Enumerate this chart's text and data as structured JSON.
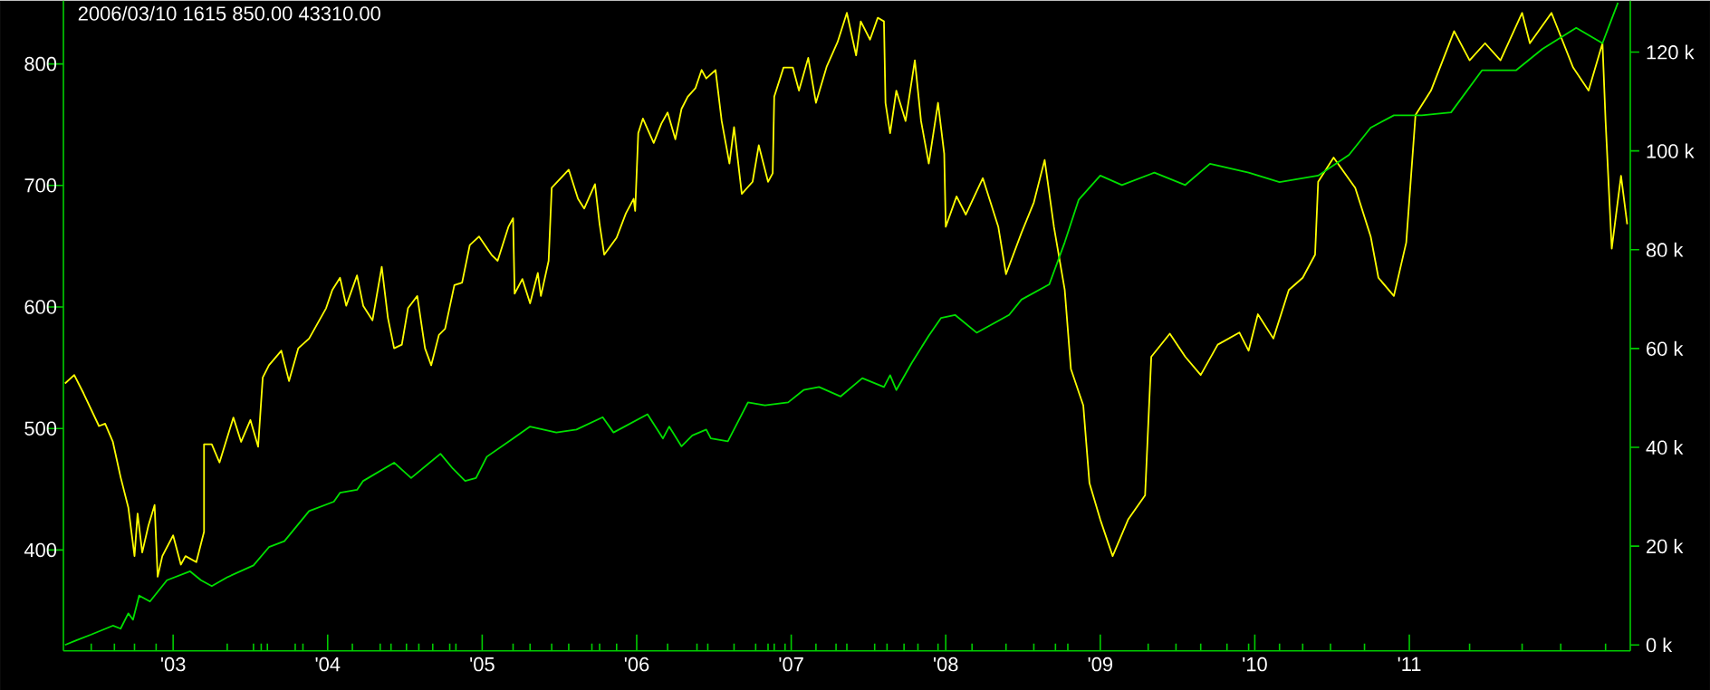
{
  "chart_data": {
    "type": "line",
    "title": "2006/03/10   1615   850.00   43310.00",
    "marker": "none",
    "xlim": [
      2002.29,
      2012.43
    ],
    "ylim": [
      317,
      852
    ],
    "y2lim": [
      -1.2,
      130.4
    ],
    "xticks": [
      {
        "value": 2003,
        "label": "'03"
      },
      {
        "value": 2004,
        "label": "'04"
      },
      {
        "value": 2005,
        "label": "'05"
      },
      {
        "value": 2006,
        "label": "'06"
      },
      {
        "value": 2007,
        "label": "'07"
      },
      {
        "value": 2008,
        "label": "'08"
      },
      {
        "value": 2009,
        "label": "'09"
      },
      {
        "value": 2010,
        "label": "'10"
      },
      {
        "value": 2011,
        "label": "'11"
      },
      {
        "value": 2002.47,
        "label": null
      },
      {
        "value": 2002.62,
        "label": null
      },
      {
        "value": 2002.75,
        "label": null
      },
      {
        "value": 2002.89,
        "label": null
      },
      {
        "value": 2003.35,
        "label": null
      },
      {
        "value": 2003.52,
        "label": null
      },
      {
        "value": 2003.57,
        "label": null
      },
      {
        "value": 2003.61,
        "label": null
      },
      {
        "value": 2003.79,
        "label": null
      },
      {
        "value": 2003.84,
        "label": null
      },
      {
        "value": 2004.16,
        "label": null
      },
      {
        "value": 2004.34,
        "label": null
      },
      {
        "value": 2004.41,
        "label": null
      },
      {
        "value": 2004.51,
        "label": null
      },
      {
        "value": 2004.59,
        "label": null
      },
      {
        "value": 2004.68,
        "label": null
      },
      {
        "value": 2004.79,
        "label": null
      },
      {
        "value": 2004.83,
        "label": null
      },
      {
        "value": 2005.2,
        "label": null
      },
      {
        "value": 2005.31,
        "label": null
      },
      {
        "value": 2005.45,
        "label": null
      },
      {
        "value": 2005.56,
        "label": null
      },
      {
        "value": 2005.71,
        "label": null
      },
      {
        "value": 2005.76,
        "label": null
      },
      {
        "value": 2005.87,
        "label": null
      },
      {
        "value": 2006.2,
        "label": null
      },
      {
        "value": 2006.39,
        "label": null
      },
      {
        "value": 2006.46,
        "label": null
      },
      {
        "value": 2006.63,
        "label": null
      },
      {
        "value": 2006.77,
        "label": null
      },
      {
        "value": 2006.85,
        "label": null
      },
      {
        "value": 2006.89,
        "label": null
      },
      {
        "value": 2006.96,
        "label": null
      },
      {
        "value": 2007.16,
        "label": null
      },
      {
        "value": 2007.29,
        "label": null
      },
      {
        "value": 2007.36,
        "label": null
      },
      {
        "value": 2007.54,
        "label": null
      },
      {
        "value": 2007.62,
        "label": null
      },
      {
        "value": 2007.73,
        "label": null
      },
      {
        "value": 2007.82,
        "label": null
      },
      {
        "value": 2007.95,
        "label": null
      },
      {
        "value": 2008.17,
        "label": null
      },
      {
        "value": 2008.39,
        "label": null
      },
      {
        "value": 2008.57,
        "label": null
      },
      {
        "value": 2008.71,
        "label": null
      },
      {
        "value": 2008.79,
        "label": null
      },
      {
        "value": 2009.31,
        "label": null
      },
      {
        "value": 2009.49,
        "label": null
      },
      {
        "value": 2009.65,
        "label": null
      },
      {
        "value": 2009.82,
        "label": null
      },
      {
        "value": 2009.96,
        "label": null
      },
      {
        "value": 2010.16,
        "label": null
      },
      {
        "value": 2010.31,
        "label": null
      },
      {
        "value": 2010.49,
        "label": null
      },
      {
        "value": 2010.71,
        "label": null
      },
      {
        "value": 2011.39,
        "label": null
      },
      {
        "value": 2011.73,
        "label": null
      },
      {
        "value": 2011.98,
        "label": null
      },
      {
        "value": 2012.27,
        "label": null
      }
    ],
    "yticks": [
      400,
      500,
      600,
      700,
      800
    ],
    "y2ticks": [
      {
        "value": 0,
        "label": "0 k"
      },
      {
        "value": 20,
        "label": "20 k"
      },
      {
        "value": 40,
        "label": "40 k"
      },
      {
        "value": 60,
        "label": "60 k"
      },
      {
        "value": 80,
        "label": "80 k"
      },
      {
        "value": 100,
        "label": "100 k"
      },
      {
        "value": 120,
        "label": "120 k"
      }
    ],
    "series": [
      {
        "color": "#ffff00",
        "x": [
          2002.3,
          2002.36,
          2002.42,
          2002.52,
          2002.56,
          2002.61,
          2002.66,
          2002.71,
          2002.75,
          2002.77,
          2002.8,
          2002.84,
          2002.88,
          2002.9,
          2002.93,
          2003.0,
          2003.05,
          2003.08,
          2003.15,
          2003.2,
          2003.2,
          2003.25,
          2003.3,
          2003.39,
          2003.44,
          2003.5,
          2003.55,
          2003.58,
          2003.62,
          2003.7,
          2003.75,
          2003.81,
          2003.88,
          2003.99,
          2004.03,
          2004.08,
          2004.12,
          2004.19,
          2004.23,
          2004.29,
          2004.35,
          2004.39,
          2004.43,
          2004.48,
          2004.52,
          2004.58,
          2004.63,
          2004.67,
          2004.72,
          2004.76,
          2004.82,
          2004.87,
          2004.92,
          2004.98,
          2005.06,
          2005.1,
          2005.17,
          2005.2,
          2005.21,
          2005.26,
          2005.31,
          2005.36,
          2005.38,
          2005.43,
          2005.45,
          2005.56,
          2005.62,
          2005.66,
          2005.73,
          2005.76,
          2005.79,
          2005.87,
          2005.93,
          2005.98,
          2005.99,
          2006.01,
          2006.04,
          2006.11,
          2006.16,
          2006.2,
          2006.25,
          2006.29,
          2006.33,
          2006.38,
          2006.42,
          2006.45,
          2006.51,
          2006.55,
          2006.6,
          2006.63,
          2006.68,
          2006.75,
          2006.79,
          2006.85,
          2006.88,
          2006.89,
          2006.95,
          2007.01,
          2007.05,
          2007.11,
          2007.16,
          2007.23,
          2007.3,
          2007.36,
          2007.42,
          2007.45,
          2007.51,
          2007.56,
          2007.6,
          2007.61,
          2007.64,
          2007.68,
          2007.74,
          2007.8,
          2007.84,
          2007.89,
          2007.95,
          2007.99,
          2008.0,
          2008.07,
          2008.13,
          2008.24,
          2008.34,
          2008.39,
          2008.49,
          2008.57,
          2008.64,
          2008.7,
          2008.77,
          2008.81,
          2008.89,
          2008.93,
          2009.0,
          2009.08,
          2009.18,
          2009.29,
          2009.33,
          2009.45,
          2009.55,
          2009.65,
          2009.76,
          2009.9,
          2009.96,
          2010.02,
          2010.12,
          2010.22,
          2010.31,
          2010.39,
          2010.41,
          2010.51,
          2010.65,
          2010.75,
          2010.8,
          2010.9,
          2010.98,
          2011.04,
          2011.14,
          2011.29,
          2011.39,
          2011.49,
          2011.59,
          2011.73,
          2011.78,
          2011.92,
          2012.06,
          2012.16,
          2012.25,
          2012.27,
          2012.31,
          2012.37,
          2012.41
        ],
        "values": [
          537,
          544,
          529,
          502,
          504,
          489,
          460,
          435,
          395,
          430,
          398,
          420,
          437,
          378,
          395,
          412,
          388,
          395,
          390,
          415,
          487,
          487,
          472,
          509,
          489,
          507,
          485,
          542,
          552,
          564,
          539,
          566,
          574,
          599,
          614,
          624,
          601,
          626,
          601,
          589,
          633,
          591,
          566,
          569,
          599,
          609,
          566,
          552,
          577,
          582,
          618,
          620,
          651,
          658,
          643,
          638,
          666,
          673,
          611,
          623,
          603,
          628,
          609,
          638,
          698,
          713,
          689,
          681,
          701,
          668,
          643,
          657,
          677,
          689,
          679,
          743,
          755,
          735,
          751,
          760,
          738,
          763,
          773,
          780,
          795,
          788,
          795,
          753,
          718,
          748,
          693,
          703,
          733,
          703,
          710,
          773,
          797,
          797,
          778,
          805,
          768,
          798,
          818,
          842,
          807,
          835,
          820,
          838,
          835,
          768,
          743,
          778,
          753,
          803,
          753,
          718,
          768,
          726,
          666,
          691,
          676,
          706,
          666,
          627,
          661,
          686,
          721,
          666,
          614,
          549,
          519,
          455,
          425,
          395,
          425,
          445,
          559,
          578,
          559,
          544,
          569,
          579,
          564,
          594,
          574,
          614,
          624,
          643,
          703,
          723,
          698,
          658,
          624,
          609,
          653,
          758,
          778,
          827,
          803,
          817,
          803,
          842,
          817,
          842,
          797,
          778,
          817,
          753,
          648,
          708,
          668
        ]
      },
      {
        "color": "#00e000",
        "axis": "y2",
        "x": [
          2002.3,
          2002.37,
          2002.47,
          2002.61,
          2002.66,
          2002.71,
          2002.74,
          2002.78,
          2002.85,
          2002.96,
          2003.11,
          2003.18,
          2003.25,
          2003.35,
          2003.52,
          2003.62,
          2003.72,
          2003.88,
          2004.04,
          2004.08,
          2004.19,
          2004.23,
          2004.43,
          2004.54,
          2004.73,
          2004.81,
          2004.89,
          2004.96,
          2005.03,
          2005.2,
          2005.31,
          2005.48,
          2005.61,
          2005.78,
          2005.85,
          2006.07,
          2006.17,
          2006.21,
          2006.29,
          2006.36,
          2006.45,
          2006.48,
          2006.59,
          2006.72,
          2006.83,
          2006.98,
          2007.08,
          2007.18,
          2007.32,
          2007.46,
          2007.6,
          2007.64,
          2007.68,
          2007.78,
          2007.89,
          2007.97,
          2008.06,
          2008.2,
          2008.41,
          2008.49,
          2008.67,
          2008.77,
          2008.86,
          2009.0,
          2009.14,
          2009.35,
          2009.55,
          2009.71,
          2009.96,
          2010.16,
          2010.41,
          2010.61,
          2010.75,
          2010.9,
          2011.08,
          2011.27,
          2011.47,
          2011.69,
          2011.86,
          2012.08,
          2012.25,
          2012.35
        ],
        "values": [
          0,
          0.9,
          2.1,
          3.9,
          3.3,
          6.4,
          5.1,
          10.0,
          8.8,
          13.1,
          14.9,
          13.1,
          11.9,
          13.7,
          16.1,
          19.8,
          21.0,
          27.1,
          29.0,
          30.8,
          31.4,
          33.2,
          36.9,
          33.8,
          38.7,
          35.7,
          33.2,
          33.8,
          38.1,
          41.8,
          44.2,
          43.0,
          43.6,
          46.1,
          43.0,
          46.7,
          41.8,
          44.2,
          40.2,
          42.4,
          43.6,
          41.8,
          41.2,
          49.1,
          48.5,
          49.1,
          51.6,
          52.2,
          50.3,
          54.0,
          52.2,
          54.6,
          51.6,
          57.1,
          62.6,
          66.2,
          66.8,
          63.2,
          66.8,
          69.9,
          73.0,
          81.5,
          90.1,
          95.0,
          93.1,
          95.6,
          93.1,
          97.4,
          95.6,
          93.7,
          95.0,
          99.2,
          104.7,
          107.2,
          107.2,
          107.8,
          116.3,
          116.3,
          120.6,
          124.9,
          121.8,
          130
        ]
      }
    ]
  }
}
